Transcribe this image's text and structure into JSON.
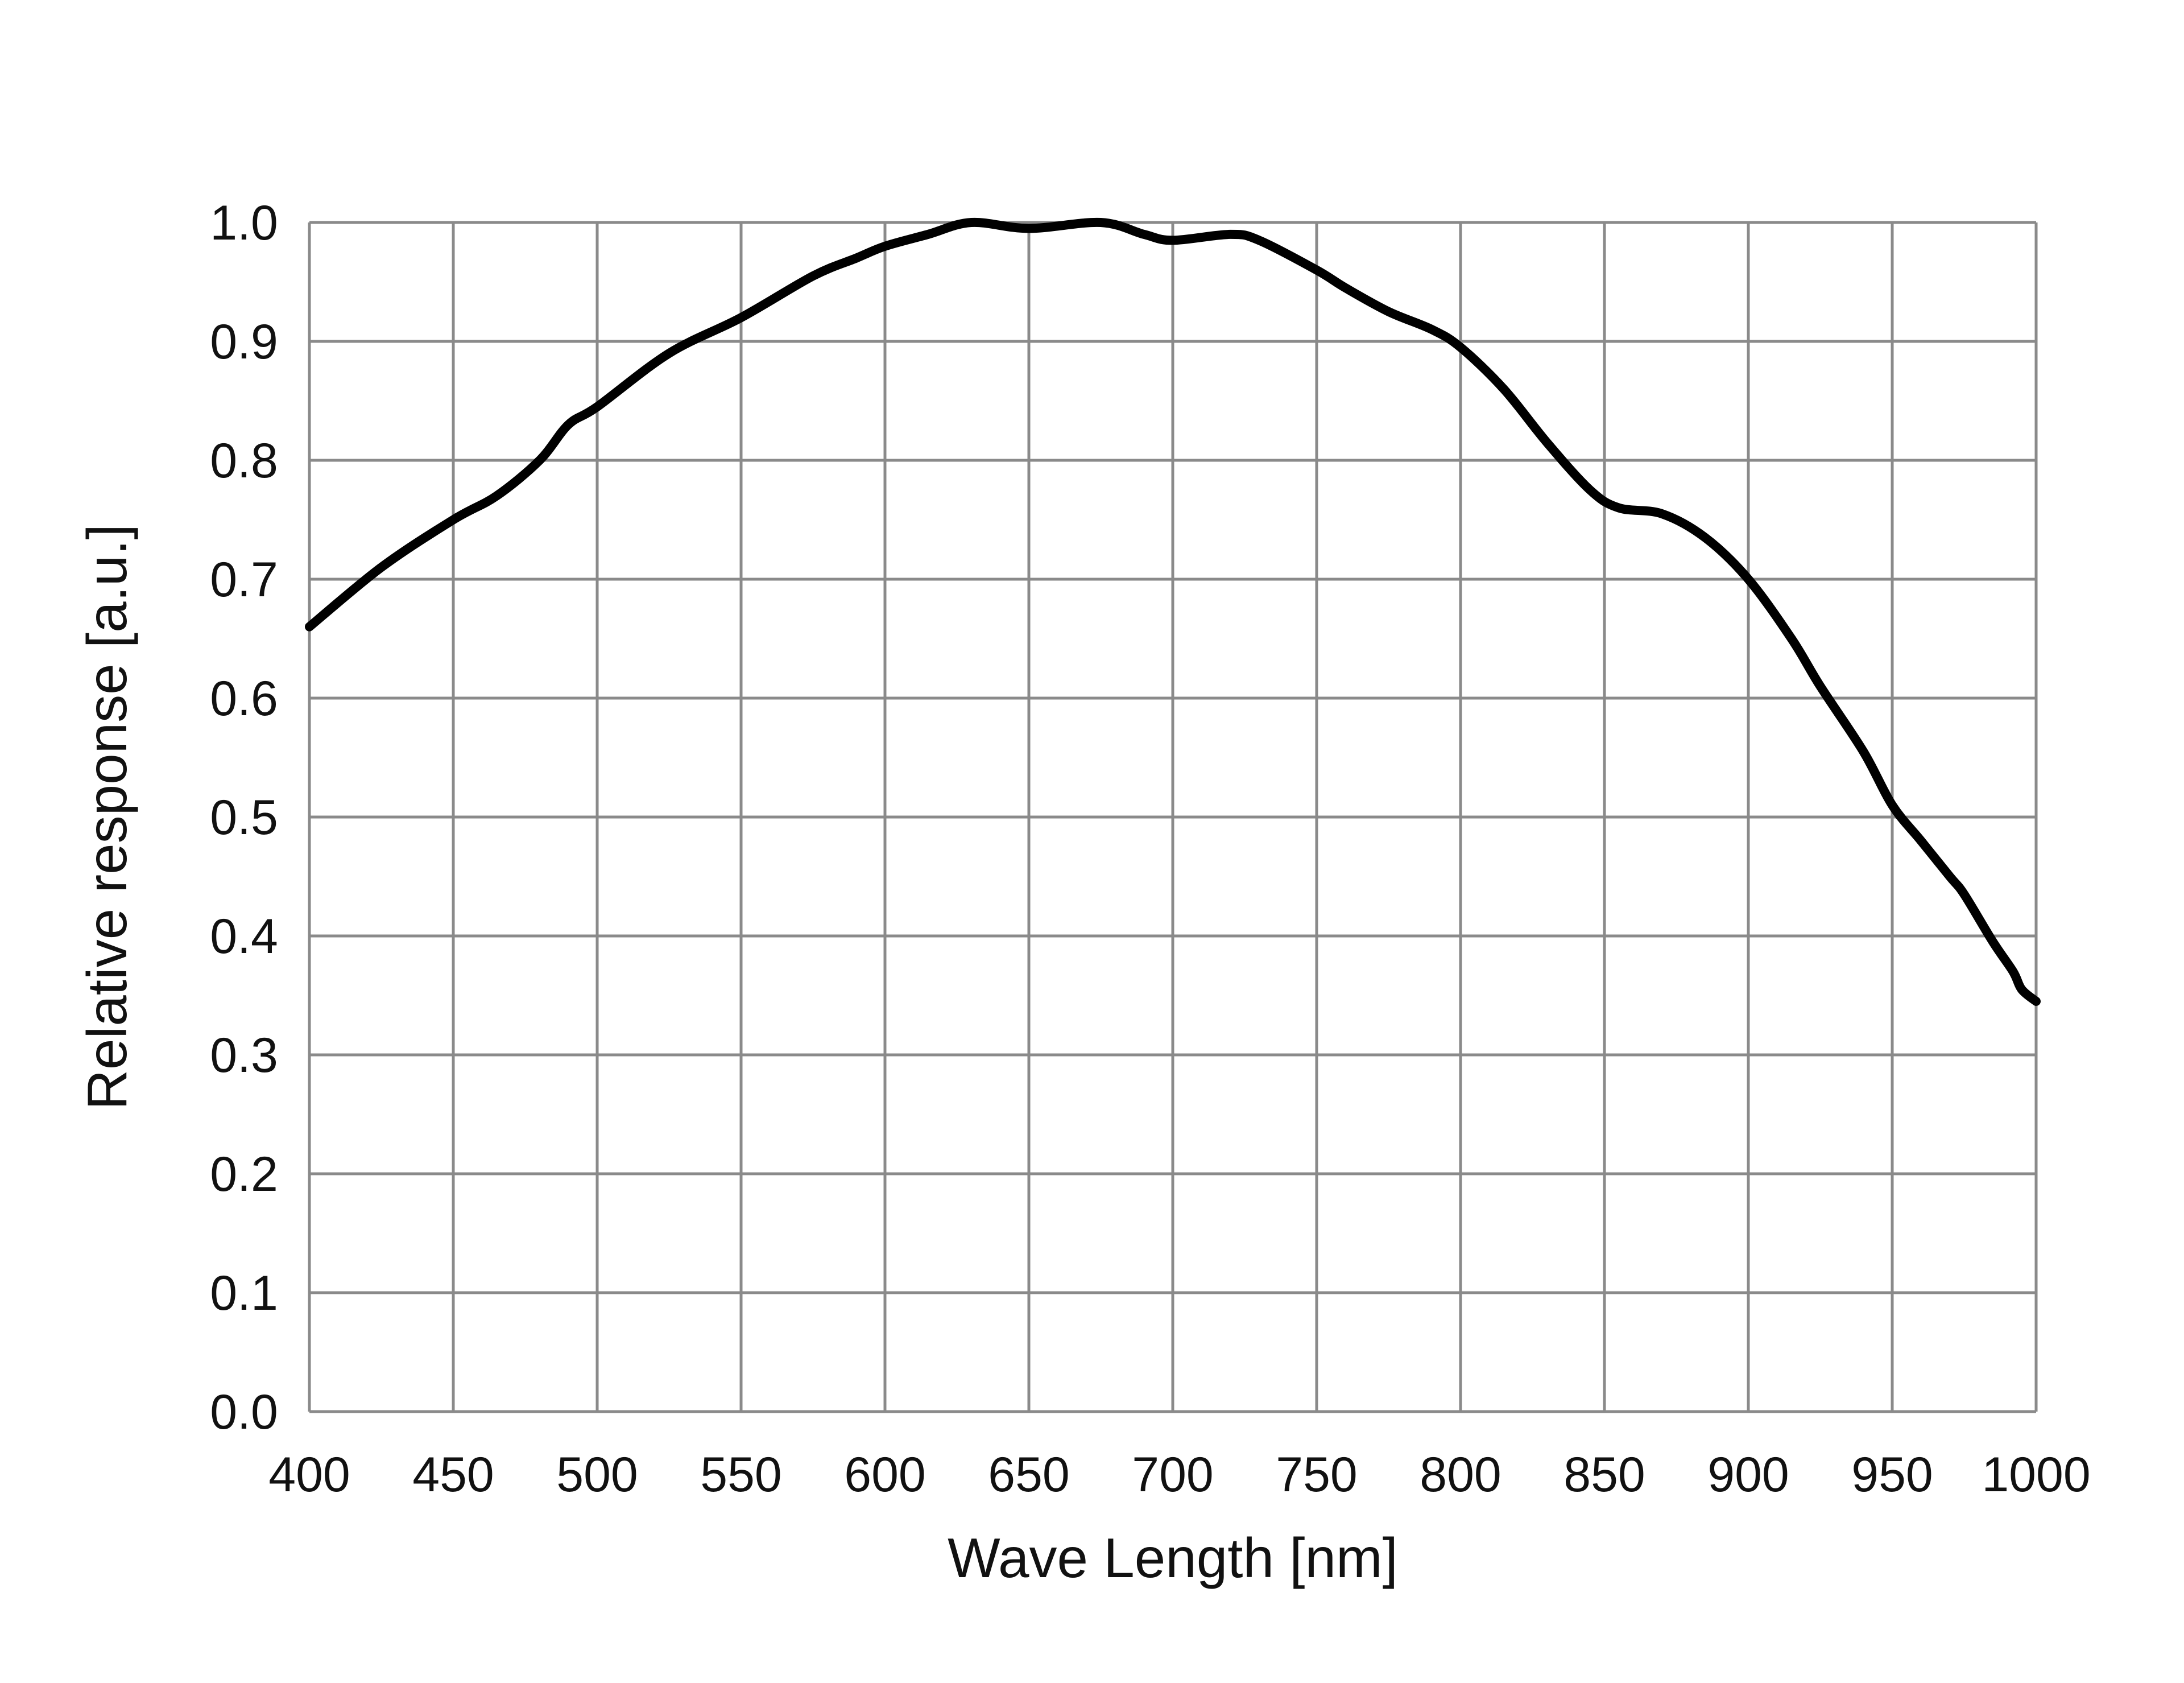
{
  "chart_data": {
    "type": "line",
    "title": "",
    "xlabel": "Wave Length [nm]",
    "ylabel": "Relative response [a.u.]",
    "xlim": [
      400,
      1000
    ],
    "ylim": [
      0.0,
      1.0
    ],
    "grid": true,
    "x_ticks": [
      "400",
      "450",
      "500",
      "550",
      "600",
      "650",
      "700",
      "750",
      "800",
      "850",
      "900",
      "950",
      "1000"
    ],
    "y_ticks": [
      "0.0",
      "0.1",
      "0.2",
      "0.3",
      "0.4",
      "0.5",
      "0.6",
      "0.7",
      "0.8",
      "0.9",
      "1.0"
    ],
    "series": [
      {
        "color": "#000000",
        "x": [
          400,
          425,
          450,
          465,
          480,
          490,
          500,
          525,
          550,
          575,
          590,
          600,
          615,
          630,
          650,
          675,
          690,
          700,
          720,
          730,
          750,
          760,
          775,
          790,
          800,
          815,
          830,
          845,
          855,
          870,
          885,
          900,
          915,
          925,
          940,
          950,
          960,
          970,
          975,
          985,
          992,
          995,
          1000
        ],
        "y": [
          0.66,
          0.71,
          0.75,
          0.77,
          0.8,
          0.83,
          0.845,
          0.89,
          0.92,
          0.955,
          0.97,
          0.98,
          0.99,
          1.0,
          0.995,
          1.0,
          0.99,
          0.985,
          0.99,
          0.985,
          0.96,
          0.945,
          0.925,
          0.91,
          0.895,
          0.86,
          0.815,
          0.775,
          0.76,
          0.755,
          0.735,
          0.7,
          0.65,
          0.61,
          0.555,
          0.51,
          0.48,
          0.45,
          0.435,
          0.395,
          0.37,
          0.355,
          0.345
        ]
      }
    ]
  }
}
